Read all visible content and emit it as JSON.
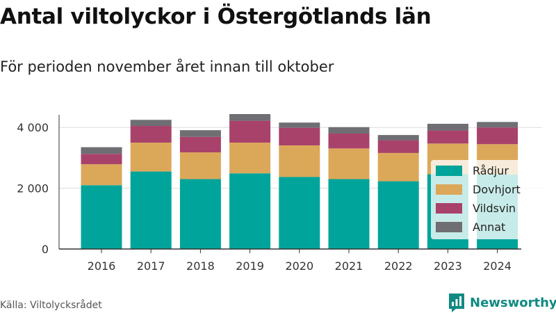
{
  "title": "Antal viltolyckor i Östergötlands län",
  "subtitle": "För perioden november året innan till oktober",
  "source": "Källa: Viltolycksrådet",
  "brand": {
    "name": "Newsworthy",
    "icon": "newsworthy-logo-icon",
    "color": "#0f8a83"
  },
  "chart_data": {
    "type": "bar",
    "stacked": true,
    "categories": [
      "2016",
      "2017",
      "2018",
      "2019",
      "2020",
      "2021",
      "2022",
      "2023",
      "2024"
    ],
    "series": [
      {
        "name": "Rådjur",
        "color": "#00a49a",
        "values": [
          2100,
          2550,
          2300,
          2490,
          2370,
          2300,
          2230,
          2460,
          2450
        ]
      },
      {
        "name": "Dovhjort",
        "color": "#dba85a",
        "values": [
          690,
          950,
          880,
          1010,
          1040,
          1010,
          930,
          1010,
          1000
        ]
      },
      {
        "name": "Vildsvin",
        "color": "#a8426b",
        "values": [
          340,
          550,
          510,
          720,
          580,
          490,
          420,
          430,
          550
        ]
      },
      {
        "name": "Annat",
        "color": "#6e6e73",
        "values": [
          220,
          200,
          220,
          220,
          170,
          210,
          170,
          220,
          180
        ]
      }
    ],
    "yticks": [
      0,
      2000,
      4000
    ],
    "ytick_labels": [
      "0",
      "2 000",
      "4 000"
    ],
    "ylim": [
      0,
      4600
    ],
    "grid": true,
    "legend_position": "right",
    "xlabel": "",
    "ylabel": ""
  }
}
